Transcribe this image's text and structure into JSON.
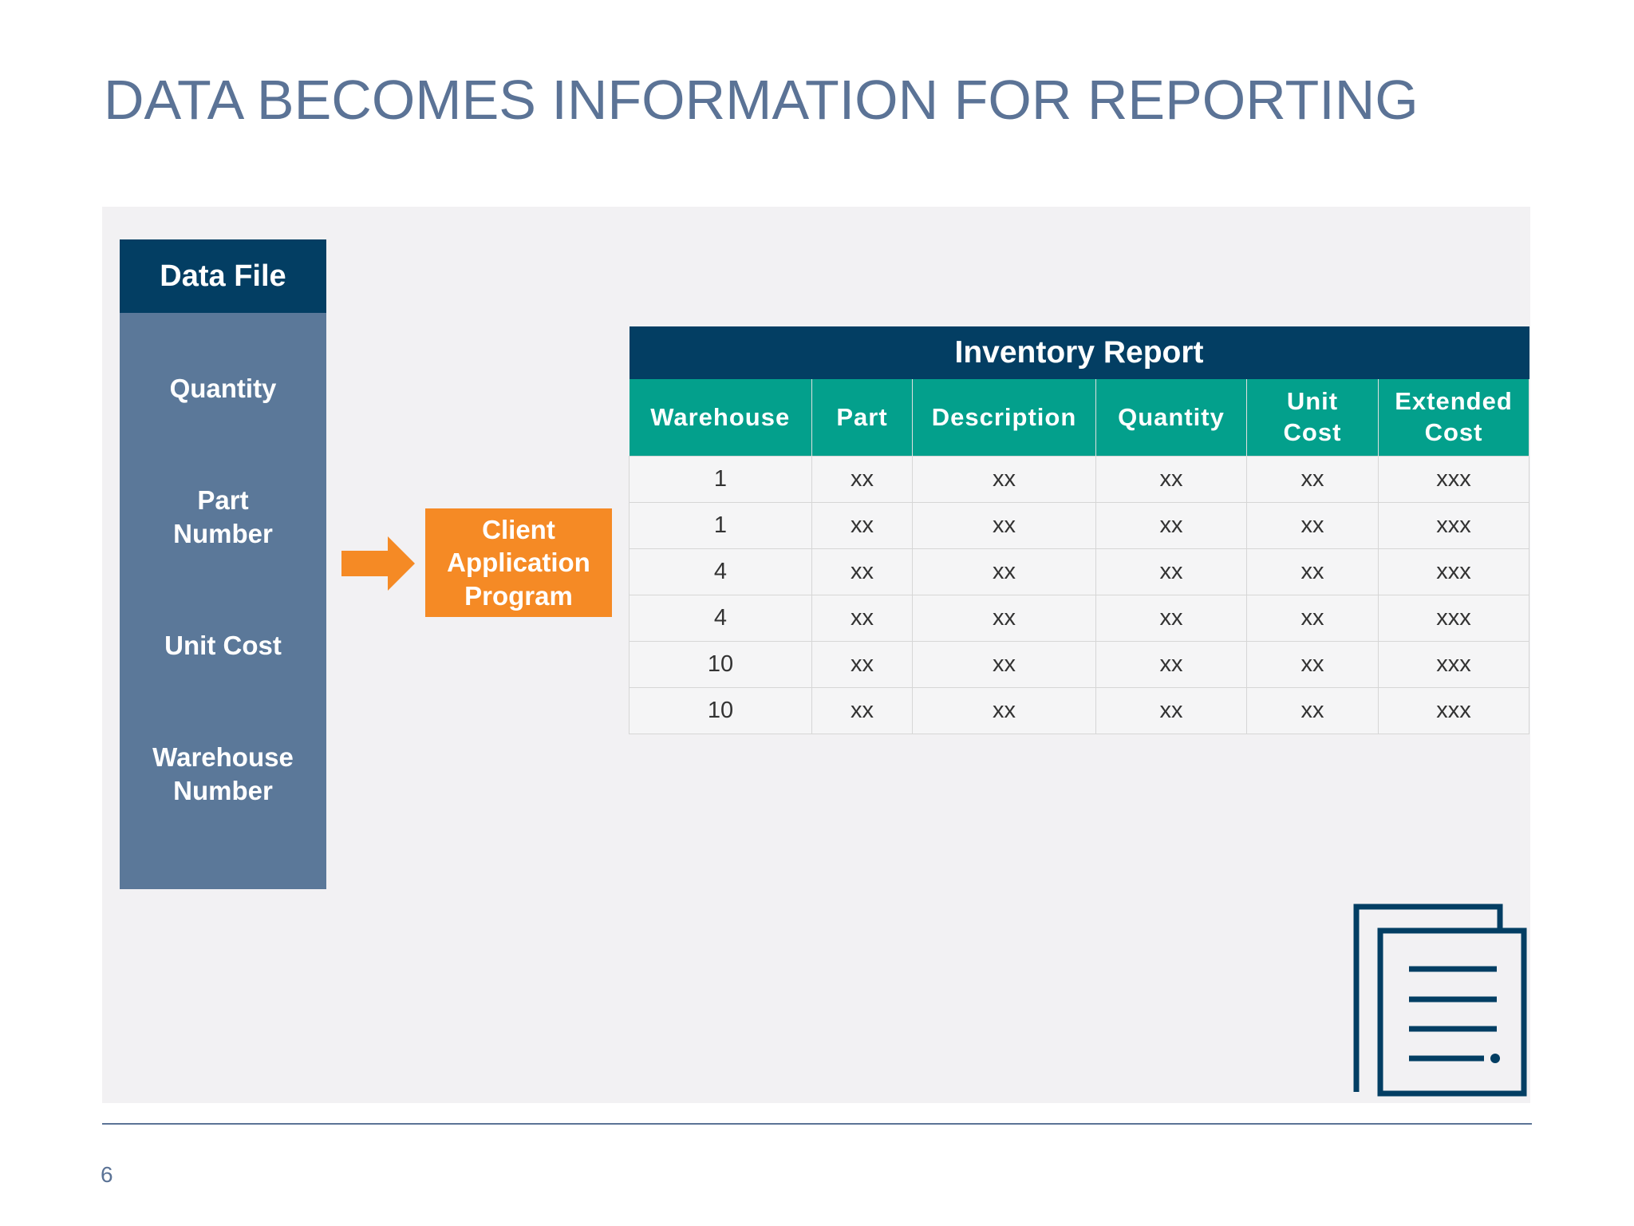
{
  "title": "DATA BECOMES INFORMATION FOR REPORTING",
  "data_file": {
    "header": "Data File",
    "fields": [
      "Quantity",
      "Part\nNumber",
      "Unit Cost",
      "Warehouse\nNumber"
    ]
  },
  "program": {
    "label": "Client\nApplication\nProgram"
  },
  "table": {
    "title": "Inventory Report",
    "columns": [
      "Warehouse",
      "Part",
      "Description",
      "Quantity",
      "Unit\nCost",
      "Extended\nCost"
    ],
    "rows": [
      [
        1,
        "xx",
        "xx",
        "xx",
        "xx",
        "xxx"
      ],
      [
        1,
        "xx",
        "xx",
        "xx",
        "xx",
        "xxx"
      ],
      [
        4,
        "xx",
        "xx",
        "xx",
        "xx",
        "xxx"
      ],
      [
        4,
        "xx",
        "xx",
        "xx",
        "xx",
        "xxx"
      ],
      [
        10,
        "xx",
        "xx",
        "xx",
        "xx",
        "xxx"
      ],
      [
        10,
        "xx",
        "xx",
        "xx",
        "xx",
        "xxx"
      ]
    ]
  },
  "page_number": "6"
}
